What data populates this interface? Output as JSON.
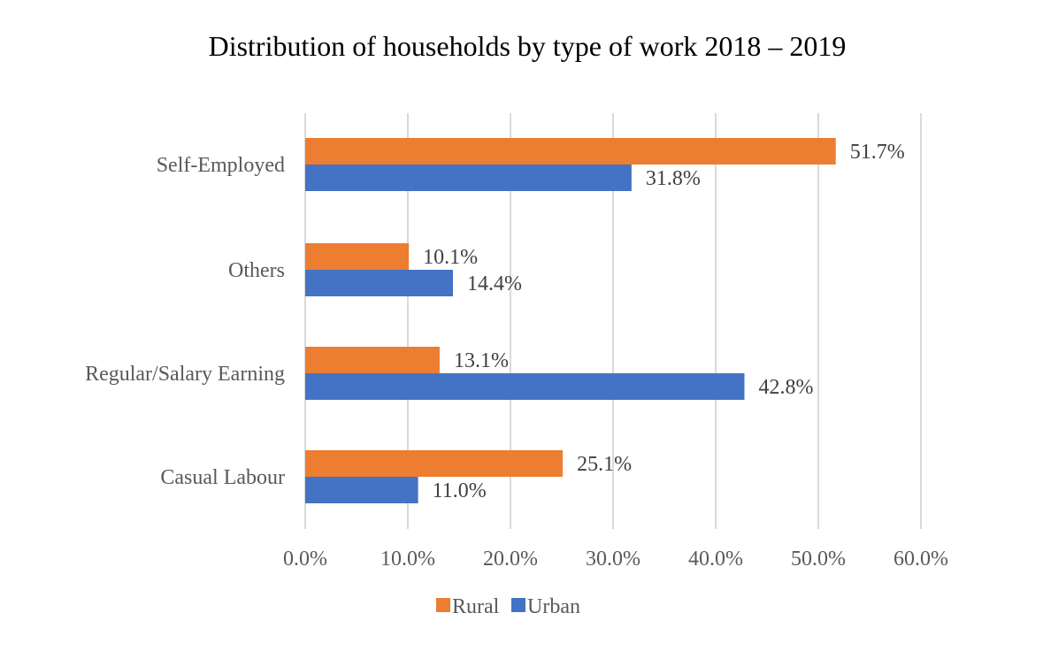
{
  "chart_data": {
    "type": "bar",
    "orientation": "horizontal",
    "title": "Distribution of households by type of work 2018 – 2019",
    "categories": [
      "Self-Employed",
      "Others",
      "Regular/Salary Earning",
      "Casual Labour"
    ],
    "series": [
      {
        "name": "Rural",
        "values": [
          51.7,
          10.1,
          13.1,
          25.1
        ],
        "color": "#ED7D31"
      },
      {
        "name": "Urban",
        "values": [
          31.8,
          14.4,
          42.8,
          11.0
        ],
        "color": "#4472C4"
      }
    ],
    "value_labels": {
      "Rural": [
        "51.7%",
        "10.1%",
        "13.1%",
        "25.1%"
      ],
      "Urban": [
        "31.8%",
        "14.4%",
        "42.8%",
        "11.0%"
      ]
    },
    "x_ticks": [
      0,
      10,
      20,
      30,
      40,
      50,
      60
    ],
    "x_tick_labels": [
      "0.0%",
      "10.0%",
      "20.0%",
      "30.0%",
      "40.0%",
      "50.0%",
      "60.0%"
    ],
    "xlim": [
      0,
      60
    ],
    "xlabel": "",
    "ylabel": "",
    "grid": "vertical",
    "legend_position": "bottom",
    "colors": {
      "grid": "#D9D9D9",
      "axis_text": "#595959",
      "title": "#000000"
    }
  }
}
